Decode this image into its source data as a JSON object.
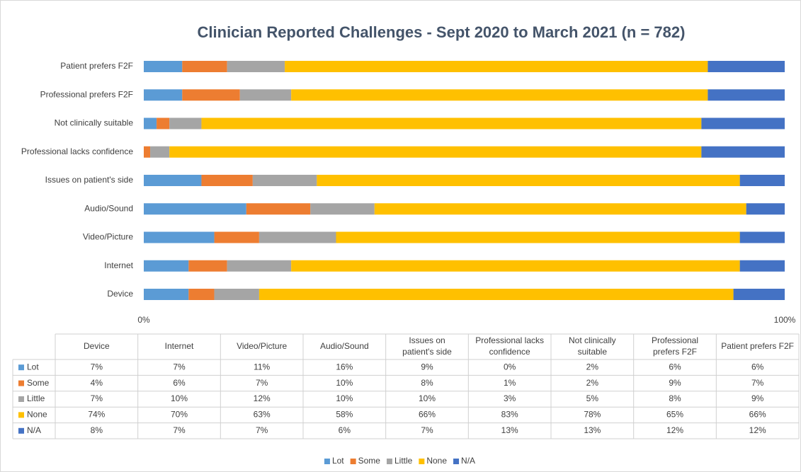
{
  "chart_data": {
    "type": "stacked_barh",
    "title": "Clinician Reported Challenges - Sept 2020 to March 2021 (n = 782)",
    "categories": [
      "Device",
      "Internet",
      "Video/Picture",
      "Audio/Sound",
      "Issues on patient's side",
      "Professional lacks confidence",
      "Not clinically suitable",
      "Professional prefers F2F",
      "Patient prefers F2F"
    ],
    "series": [
      {
        "name": "Lot",
        "color": "#5b9bd5",
        "values": [
          7,
          7,
          11,
          16,
          9,
          0,
          2,
          6,
          6
        ],
        "value_labels": [
          "7%",
          "7%",
          "11%",
          "16%",
          "9%",
          "0%",
          "2%",
          "6%",
          "6%"
        ]
      },
      {
        "name": "Some",
        "color": "#ed7d31",
        "values": [
          4,
          6,
          7,
          10,
          8,
          1,
          2,
          9,
          7
        ],
        "value_labels": [
          "4%",
          "6%",
          "7%",
          "10%",
          "8%",
          "1%",
          "2%",
          "9%",
          "7%"
        ]
      },
      {
        "name": "Little",
        "color": "#a5a5a5",
        "values": [
          7,
          10,
          12,
          10,
          10,
          3,
          5,
          8,
          9
        ],
        "value_labels": [
          "7%",
          "10%",
          "12%",
          "10%",
          "10%",
          "3%",
          "5%",
          "8%",
          "9%"
        ]
      },
      {
        "name": "None",
        "color": "#ffc000",
        "values": [
          74,
          70,
          63,
          58,
          66,
          83,
          78,
          65,
          66
        ],
        "value_labels": [
          "74%",
          "70%",
          "63%",
          "58%",
          "66%",
          "83%",
          "78%",
          "65%",
          "66%"
        ]
      },
      {
        "name": "N/A",
        "color": "#4472c4",
        "values": [
          8,
          7,
          7,
          6,
          7,
          13,
          13,
          12,
          12
        ],
        "value_labels": [
          "8%",
          "7%",
          "7%",
          "6%",
          "7%",
          "13%",
          "13%",
          "12%",
          "12%"
        ]
      }
    ],
    "xlim": [
      0,
      100
    ],
    "xticks": [
      {
        "value": 0,
        "label": "0%"
      },
      {
        "value": 100,
        "label": "100%"
      }
    ],
    "legend": "bottom"
  }
}
